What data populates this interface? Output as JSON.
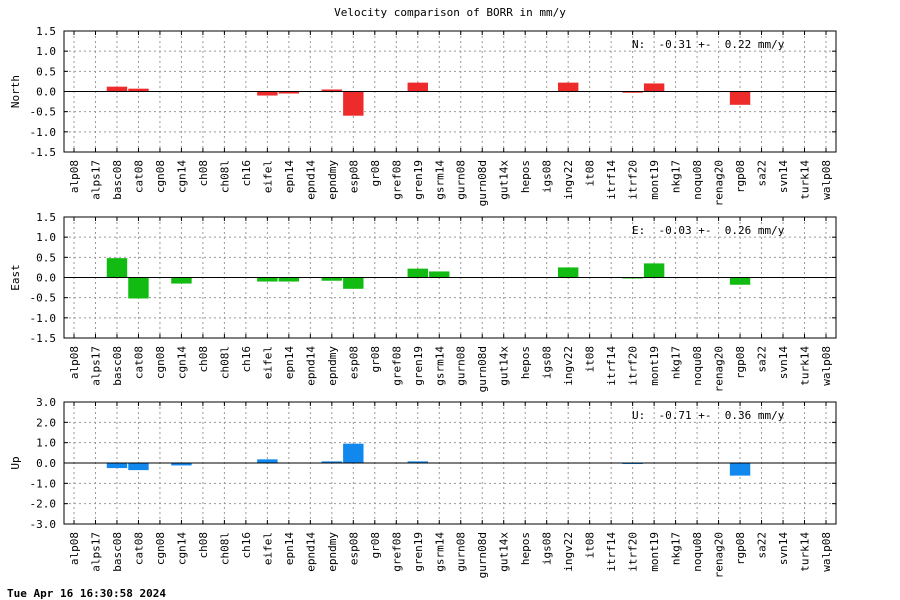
{
  "title": "Velocity comparison of BORR in mm/y",
  "footer": "Tue Apr 16 16:30:58 2024",
  "chart_data": {
    "type": "bar",
    "categories": [
      "alp08",
      "alps17",
      "basc08",
      "cat08",
      "cgn08",
      "cgn14",
      "ch08",
      "ch08l",
      "ch16",
      "eifel",
      "epn14",
      "epnd14",
      "epndmy",
      "esp08",
      "gr08",
      "gref08",
      "gren19",
      "gsrm14",
      "gurn08",
      "gurn08d",
      "gut14x",
      "hepos",
      "igs08",
      "ingv22",
      "it08",
      "itrf14",
      "itrf20",
      "mont19",
      "nkg17",
      "noqu08",
      "renag20",
      "rgp08",
      "sa22",
      "svn14",
      "turk14",
      "walp08"
    ],
    "grid": true,
    "panels": [
      {
        "ylabel": "North",
        "annotation": "N:  -0.31 +-  0.22 mm/y",
        "color": "#ee2b2b",
        "ylim": [
          -1.5,
          1.5
        ],
        "yticks": [
          1.5,
          1.0,
          0.5,
          0.0,
          -0.5,
          -1.0,
          -1.5
        ],
        "tick_labels": [
          "1.5",
          "1.0",
          "0.5",
          "0.0",
          "-0.5",
          "-1.0",
          "-1.5"
        ],
        "values": [
          0,
          0,
          0.12,
          0.07,
          0,
          0,
          0,
          0,
          0,
          -0.1,
          -0.05,
          0,
          0.05,
          -0.6,
          0,
          0,
          0.22,
          0,
          0,
          0,
          0,
          0,
          0,
          0.22,
          0,
          0,
          -0.03,
          0.2,
          0,
          0,
          0,
          -0.33,
          0,
          0,
          0,
          0
        ]
      },
      {
        "ylabel": "East",
        "annotation": "E:  -0.03 +-  0.26 mm/y",
        "color": "#11bb11",
        "ylim": [
          -1.5,
          1.5
        ],
        "yticks": [
          1.5,
          1.0,
          0.5,
          0.0,
          -0.5,
          -1.0,
          -1.5
        ],
        "tick_labels": [
          "1.5",
          "1.0",
          "0.5",
          "0.0",
          "-0.5",
          "-1.0",
          "-1.5"
        ],
        "values": [
          0,
          0,
          0.48,
          -0.52,
          0,
          -0.15,
          0,
          0,
          0,
          -0.1,
          -0.1,
          0,
          -0.08,
          -0.28,
          0,
          0,
          0.22,
          0.15,
          0,
          0,
          0,
          0,
          0,
          0.25,
          0,
          0,
          -0.02,
          0.35,
          0,
          0,
          0,
          -0.18,
          0,
          0,
          0,
          0
        ]
      },
      {
        "ylabel": "Up",
        "annotation": "U:  -0.71 +-  0.36 mm/y",
        "color": "#1188ee",
        "ylim": [
          -3.0,
          3.0
        ],
        "yticks": [
          3.0,
          2.0,
          1.0,
          0.0,
          -1.0,
          -2.0,
          -3.0
        ],
        "tick_labels": [
          "3.0",
          "2.0",
          "1.0",
          "0.0",
          "-1.0",
          "-2.0",
          "-3.0"
        ],
        "values": [
          0,
          0,
          -0.25,
          -0.35,
          0,
          -0.12,
          0,
          0,
          0,
          0.18,
          0,
          0,
          0.08,
          0.95,
          0,
          0,
          0.08,
          0,
          0,
          0,
          0,
          0,
          0,
          0,
          0,
          0,
          -0.05,
          0,
          0,
          0,
          0,
          -0.62,
          0,
          0,
          0,
          0
        ]
      }
    ]
  }
}
